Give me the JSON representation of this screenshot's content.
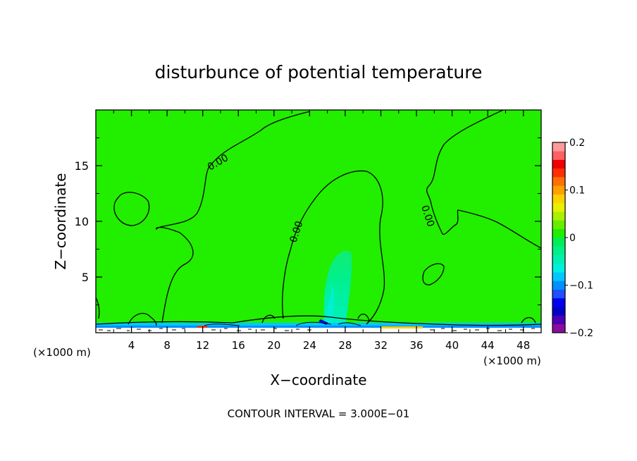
{
  "chart_data": {
    "type": "heatmap",
    "title": "disturbunce of potential temperature",
    "xlabel": "X−coordinate",
    "ylabel": "Z−coordinate",
    "x_unit_left": "(×1000 m)",
    "x_unit_right": "(×1000 m)",
    "footer": "CONTOUR INTERVAL = 3.000E−01",
    "xlim": [
      0,
      50
    ],
    "ylim": [
      0,
      20
    ],
    "x_ticks": [
      4,
      8,
      12,
      16,
      20,
      24,
      28,
      32,
      36,
      40,
      44,
      48
    ],
    "x_tick_labels": [
      "4",
      "8",
      "12",
      "16",
      "20",
      "24",
      "28",
      "32",
      "36",
      "40",
      "44",
      "48"
    ],
    "y_ticks": [
      5,
      10,
      15
    ],
    "y_tick_labels": [
      "5",
      "10",
      "15"
    ],
    "background_value": 0.0,
    "background_color": "#22ee00",
    "contour_labels": [
      {
        "text": "0.00",
        "x": 14,
        "z": 15.2
      },
      {
        "text": "0.00",
        "x": 23.2,
        "z": 8.8
      },
      {
        "text": "0.00",
        "x": 37.4,
        "z": 10.4
      }
    ],
    "features": [
      {
        "name": "cool plume",
        "value": -0.03,
        "x_range": [
          25.8,
          29.5
        ],
        "z_range": [
          0.3,
          7.2
        ]
      },
      {
        "name": "surface layer",
        "value": -0.1,
        "x_range": [
          0,
          50
        ],
        "z_range": [
          0,
          1.0
        ]
      }
    ],
    "colorbar": {
      "min": -0.2,
      "max": 0.2,
      "tick_values": [
        0.2,
        0.1,
        0,
        -0.1,
        -0.2
      ],
      "tick_labels": [
        "0.2",
        "0.1",
        "0",
        "−0.1",
        "−0.2"
      ],
      "colors": [
        "#8a0c9e",
        "#4b00b4",
        "#0000c8",
        "#0000f0",
        "#1e50ff",
        "#0090ff",
        "#00c8ff",
        "#00f0e0",
        "#00f0b0",
        "#00f088",
        "#00ee55",
        "#22ee00",
        "#66ee00",
        "#aaf000",
        "#e6f000",
        "#ffd000",
        "#ffa000",
        "#ff7000",
        "#ff3000",
        "#ee0000",
        "#ff6060",
        "#ff9a9a"
      ]
    }
  }
}
